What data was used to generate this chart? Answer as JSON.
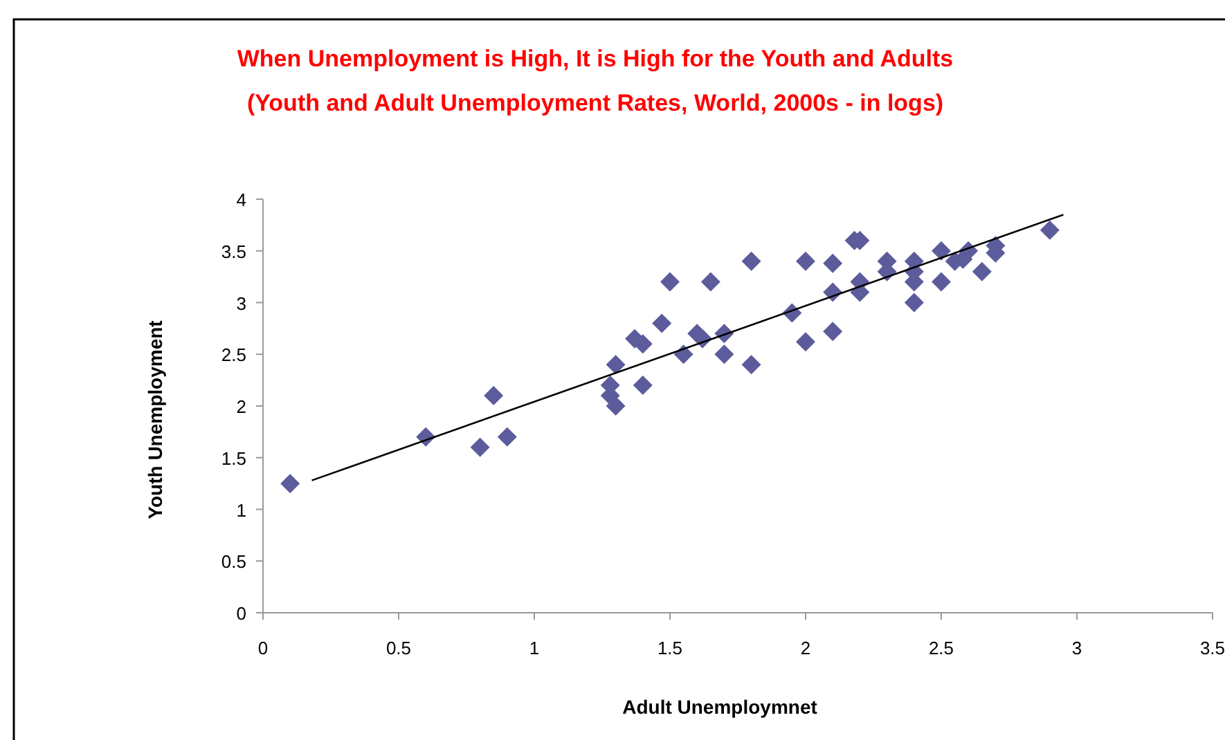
{
  "chart_data": {
    "type": "scatter",
    "title": "When Unemployment is High, It is High for the Youth and Adults",
    "subtitle": "(Youth and Adult Unemployment Rates, World, 2000s - in logs)",
    "xlabel": "Adult Unemploymnet",
    "ylabel": "Youth Unemployment",
    "xlim": [
      0,
      3.5
    ],
    "xticks": [
      0,
      0.5,
      1,
      1.5,
      2,
      2.5,
      3,
      3.5
    ],
    "ylim": [
      0,
      4
    ],
    "yticks": [
      0,
      0.5,
      1,
      1.5,
      2,
      2.5,
      3,
      3.5,
      4
    ],
    "grid": false,
    "marker": "diamond",
    "series": [
      {
        "color": "#5c5c9c",
        "x": [
          0.1,
          0.6,
          0.8,
          0.85,
          0.9,
          1.28,
          1.28,
          1.3,
          1.3,
          1.37,
          1.4,
          1.4,
          1.47,
          1.5,
          1.55,
          1.6,
          1.62,
          1.65,
          1.7,
          1.7,
          1.8,
          1.8,
          1.95,
          2.0,
          2.0,
          2.1,
          2.1,
          2.1,
          2.18,
          2.2,
          2.2,
          2.2,
          2.3,
          2.3,
          2.4,
          2.4,
          2.4,
          2.4,
          2.5,
          2.5,
          2.55,
          2.6,
          2.58,
          2.65,
          2.7,
          2.7,
          2.9
        ],
        "values": [
          1.25,
          1.7,
          1.6,
          2.1,
          1.7,
          2.2,
          2.1,
          2.4,
          2.0,
          2.65,
          2.6,
          2.2,
          2.8,
          3.2,
          2.5,
          2.7,
          2.65,
          3.2,
          2.7,
          2.5,
          3.4,
          2.4,
          2.9,
          3.4,
          2.62,
          3.38,
          3.1,
          2.72,
          3.6,
          3.6,
          3.2,
          3.1,
          3.4,
          3.3,
          3.4,
          3.3,
          3.2,
          3.0,
          3.5,
          3.2,
          3.4,
          3.5,
          3.42,
          3.3,
          3.55,
          3.48,
          3.7
        ]
      },
      {
        "type": "line",
        "color": "#000000",
        "marker": "none",
        "x": [
          0.18,
          2.95
        ],
        "values": [
          1.28,
          3.85
        ]
      }
    ]
  }
}
